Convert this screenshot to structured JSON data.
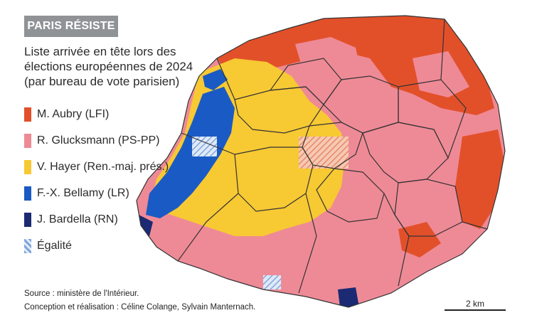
{
  "header": {
    "banner": "PARIS RÉSISTE",
    "subtitle_lines": [
      "Liste arrivée en tête lors des",
      "élections européennes de 2024",
      "(par bureau de vote parisien)"
    ]
  },
  "legend": [
    {
      "label": "M. Aubry (LFI)",
      "color": "#e2502a",
      "pattern": "solid"
    },
    {
      "label": "R. Glucksmann (PS-PP)",
      "color": "#ee8a96",
      "pattern": "solid"
    },
    {
      "label": "V. Hayer (Ren.-maj. prés.)",
      "color": "#f7c933",
      "pattern": "solid"
    },
    {
      "label": "F.-X. Bellamy (LR)",
      "color": "#1a5ac4",
      "pattern": "solid"
    },
    {
      "label": "J. Bardella (RN)",
      "color": "#1b2a73",
      "pattern": "solid"
    },
    {
      "label": "Égalité",
      "color": "#7fa6dd",
      "pattern": "hatched"
    }
  ],
  "source": {
    "line1": "Source : ministère de l'Intérieur.",
    "line2": "Conception et réalisation : Céline Colange, Sylvain Manternach."
  },
  "scale": {
    "label": "2 km"
  },
  "map": {
    "title": "Paris",
    "unit": "bureau de vote"
  }
}
